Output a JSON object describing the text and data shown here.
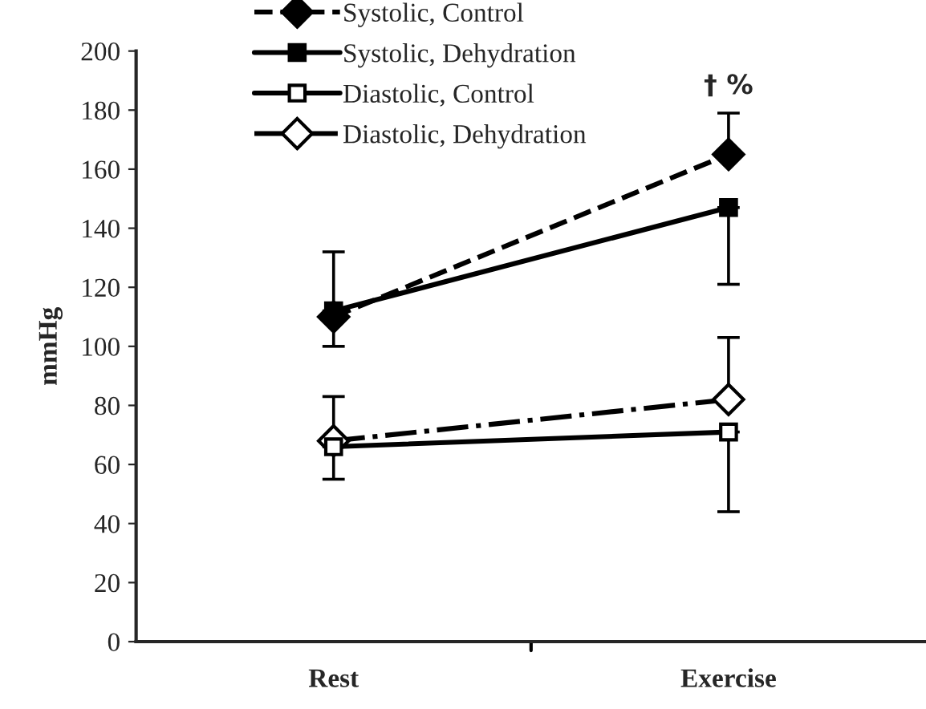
{
  "chart_data": {
    "type": "line",
    "ylabel": "mmHg",
    "categories": [
      "Rest",
      "Exercise"
    ],
    "ylim": [
      0,
      200
    ],
    "yticks": [
      0,
      20,
      40,
      60,
      80,
      100,
      120,
      140,
      160,
      180,
      200
    ],
    "grid": false,
    "legend": "top left",
    "series": [
      {
        "name": "Systolic, Control",
        "color": "#000000",
        "values": [
          110,
          165
        ],
        "marker": "diamond",
        "line_style": "dashed",
        "errors": [
          [
            110,
            132
          ],
          [
            165,
            179
          ]
        ]
      },
      {
        "name": "Systolic, Dehydration",
        "color": "#000000",
        "values": [
          112,
          147
        ],
        "marker": "square",
        "line_style": "solid",
        "errors": [
          [
            100,
            112
          ],
          [
            121,
            147
          ]
        ]
      },
      {
        "name": "Diastolic, Control",
        "color": "#000000",
        "values": [
          66,
          71
        ],
        "marker": "square",
        "line_style": "solid",
        "errors": [
          [
            55,
            66
          ],
          [
            44,
            71
          ]
        ]
      },
      {
        "name": "Diastolic, Dehydration",
        "color": "#000000",
        "values": [
          68,
          82
        ],
        "marker": "diamond",
        "line_style": "dashdot",
        "errors": [
          [
            68,
            83
          ],
          [
            82,
            103
          ]
        ]
      }
    ],
    "annotations": [
      "† %"
    ]
  }
}
